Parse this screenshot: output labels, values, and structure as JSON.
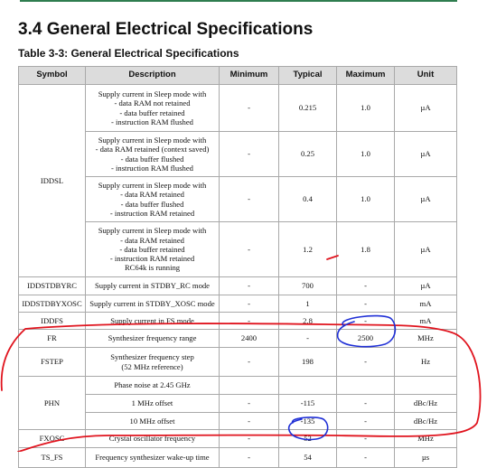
{
  "section_title": "3.4 General Electrical Specifications",
  "table_caption": "Table 3-3: General Electrical Specifications",
  "columns": [
    "Symbol",
    "Description",
    "Minimum",
    "Typical",
    "Maximum",
    "Unit"
  ],
  "rows": {
    "iddsl_symbol": "IDDSL",
    "iddsl_1": {
      "desc": [
        "Supply current in Sleep mode with",
        "- data RAM not retained",
        "- data buffer retained",
        "- instruction RAM flushed"
      ],
      "min": "-",
      "typ": "0.215",
      "max": "1.0",
      "unit": "µA"
    },
    "iddsl_2": {
      "desc": [
        "Supply current in Sleep mode with",
        "- data RAM retained (context saved)",
        "- data buffer flushed",
        "- instruction RAM flushed"
      ],
      "min": "-",
      "typ": "0.25",
      "max": "1.0",
      "unit": "µA"
    },
    "iddsl_3": {
      "desc": [
        "Supply current in Sleep mode with",
        "- data RAM retained",
        "- data buffer flushed",
        "- instruction RAM retained"
      ],
      "min": "-",
      "typ": "0.4",
      "max": "1.0",
      "unit": "µA"
    },
    "iddsl_4": {
      "desc": [
        "Supply current in Sleep mode with",
        "- data RAM retained",
        "- data buffer retained",
        "- instruction RAM retained",
        "RC64k is running"
      ],
      "min": "-",
      "typ": "1.2",
      "max": "1.8",
      "unit": "µA"
    },
    "iddstdbyrc": {
      "symbol": "IDDSTDBYRC",
      "desc": "Supply current in STDBY_RC mode",
      "min": "-",
      "typ": "700",
      "max": "-",
      "unit": "µA"
    },
    "iddstdbyxosc": {
      "symbol": "IDDSTDBYXOSC",
      "desc": "Supply current in STDBY_XOSC mode",
      "min": "-",
      "typ": "1",
      "max": "-",
      "unit": "mA"
    },
    "iddfs": {
      "symbol": "IDDFS",
      "desc": "Supply current in FS mode",
      "min": "-",
      "typ": "2.8",
      "max": "-",
      "unit": "mA"
    },
    "fr": {
      "symbol": "FR",
      "desc": "Synthesizer frequency range",
      "min": "2400",
      "typ": "-",
      "max": "2500",
      "unit": "MHz"
    },
    "fstep": {
      "symbol": "FSTEP",
      "desc": [
        "Synthesizer frequency step",
        "(52 MHz reference)"
      ],
      "min": "-",
      "typ": "198",
      "max": "-",
      "unit": "Hz"
    },
    "phn_symbol": "PHN",
    "phn_header": "Phase noise at 2.45 GHz",
    "phn_1": {
      "desc": "1 MHz offset",
      "min": "-",
      "typ": "-115",
      "max": "-",
      "unit": "dBc/Hz"
    },
    "phn_2": {
      "desc": "10 MHz offset",
      "min": "-",
      "typ": "-135",
      "max": "-",
      "unit": "dBc/Hz"
    },
    "fxosc": {
      "symbol": "FXOSC",
      "desc": "Crystal oscillator frequency",
      "min": "-",
      "typ": "52",
      "max": "-",
      "unit": "MHz"
    },
    "ts_fs": {
      "symbol": "TS_FS",
      "desc": "Frequency synthesizer wake-up time",
      "min": "-",
      "typ": "54",
      "max": "-",
      "unit": "µs"
    }
  },
  "annotation_colors": {
    "red": "#e0141e",
    "blue": "#1f2fd6"
  }
}
